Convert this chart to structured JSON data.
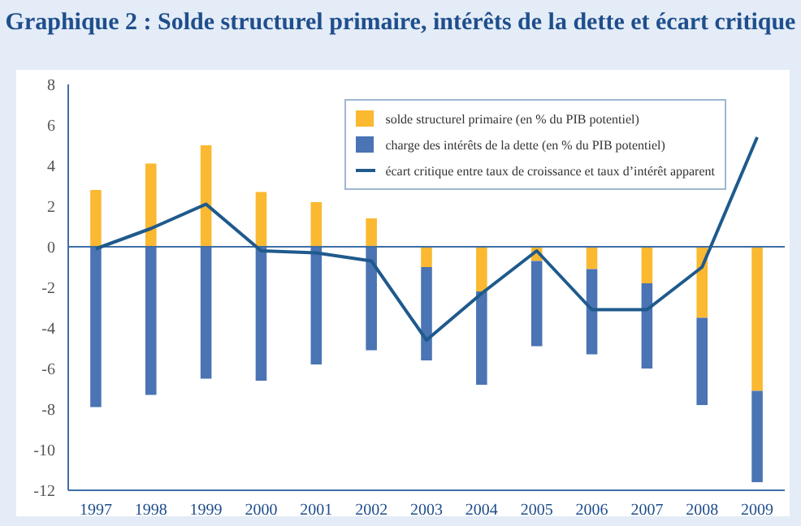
{
  "chart_data": {
    "type": "bar",
    "title": "Graphique 2 : Solde structurel primaire, intérêts de la dette et écart critique",
    "categories": [
      "1997",
      "1998",
      "1999",
      "2000",
      "2001",
      "2002",
      "2003",
      "2004",
      "2005",
      "2006",
      "2007",
      "2008",
      "2009"
    ],
    "stacked": true,
    "series": [
      {
        "name": "solde structurel primaire (en % du PIB potentiel)",
        "color": "#fbb831",
        "values": [
          2.8,
          4.1,
          5.0,
          2.7,
          2.2,
          1.4,
          -1.0,
          -2.2,
          -0.7,
          -1.1,
          -1.8,
          -3.5,
          -7.1
        ]
      },
      {
        "name": "charge des intérêts de la dette (en % du PIB potentiel)",
        "color": "#4a74b4",
        "values": [
          -7.9,
          -7.3,
          -6.5,
          -6.6,
          -5.8,
          -5.1,
          -4.6,
          -4.6,
          -4.2,
          -4.2,
          -4.2,
          -4.3,
          -4.5
        ]
      },
      {
        "name": "écart critique entre taux de croissance et taux d’intérêt apparent",
        "color": "#1f5a8c",
        "type": "line",
        "values": [
          -0.1,
          0.9,
          2.1,
          -0.2,
          -0.3,
          -0.7,
          -4.6,
          -2.3,
          -0.2,
          -3.1,
          -3.1,
          -1.0,
          5.4
        ]
      }
    ],
    "ref_lines": [
      {
        "axis": "y",
        "value": 0,
        "color": "#3e6ea5"
      }
    ],
    "ylim": [
      -12,
      8
    ],
    "yticks": [
      -12,
      -10,
      -8,
      -6,
      -4,
      -2,
      0,
      2,
      4,
      6,
      8
    ],
    "legend": "top right",
    "marker": "none"
  }
}
